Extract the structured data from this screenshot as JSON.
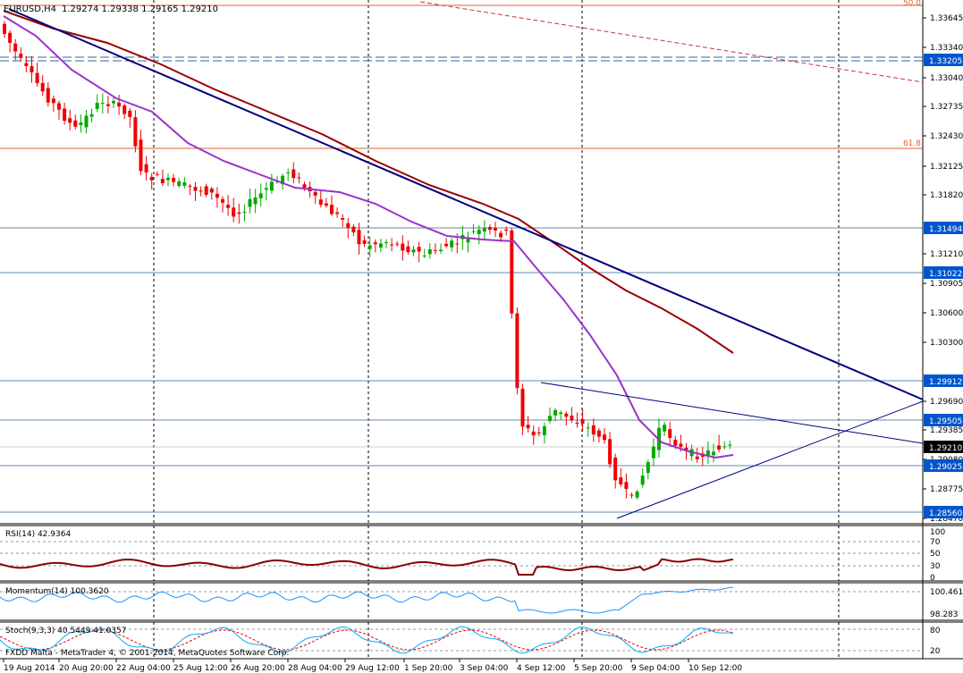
{
  "header": {
    "symbol": "EURUSD,H4",
    "ohlc": "1.29274 1.29338 1.29165 1.29210"
  },
  "fib_labels": [
    "50.0",
    "61.8"
  ],
  "price_axis": {
    "ticks": [
      "1.33645",
      "1.33340",
      "1.33040",
      "1.32735",
      "1.32430",
      "1.32125",
      "1.31820",
      "1.31210",
      "1.30905",
      "1.30600",
      "1.30300",
      "1.29690",
      "1.29385",
      "1.29080",
      "1.28775",
      "1.28470"
    ],
    "level_labels": [
      "1.33205",
      "1.31494",
      "1.31022",
      "1.29912",
      "1.29505",
      "1.29025",
      "1.28560"
    ],
    "current_price": "1.29210",
    "accent_color": "#0055cc",
    "current_color": "#000000"
  },
  "time_axis": [
    "19 Aug 2014",
    "20 Aug 20:00",
    "22 Aug 04:00",
    "25 Aug 12:00",
    "26 Aug 20:00",
    "28 Aug 04:00",
    "29 Aug 12:00",
    "1 Sep 20:00",
    "3 Sep 04:00",
    "4 Sep 12:00",
    "5 Sep 20:00",
    "9 Sep 04:00",
    "10 Sep 12:00"
  ],
  "colors": {
    "bull": "#00aa00",
    "bear": "#ee0000",
    "ma_fast": "#9933cc",
    "ma_slow": "#990000",
    "trend": "#000080",
    "rsi": "#880000",
    "momentum": "#1e90ff",
    "stoch_main": "#00aaff",
    "stoch_signal": "#ee0000"
  },
  "rsi_panel": {
    "label": "RSI(14) 42.9364",
    "levels": [
      "100",
      "70",
      "50",
      "30",
      "0"
    ]
  },
  "momentum_panel": {
    "label": "Momentum(14) 100.3620",
    "levels": [
      "100.461",
      "98.283"
    ]
  },
  "stoch_panel": {
    "label": "Stoch(9,3,3) 40.5449 41.0357",
    "levels": [
      "80",
      "20"
    ]
  },
  "watermark": "FXDD Malta - MetaTrader 4, © 2001-2014, MetaQuotes Software Corp."
}
